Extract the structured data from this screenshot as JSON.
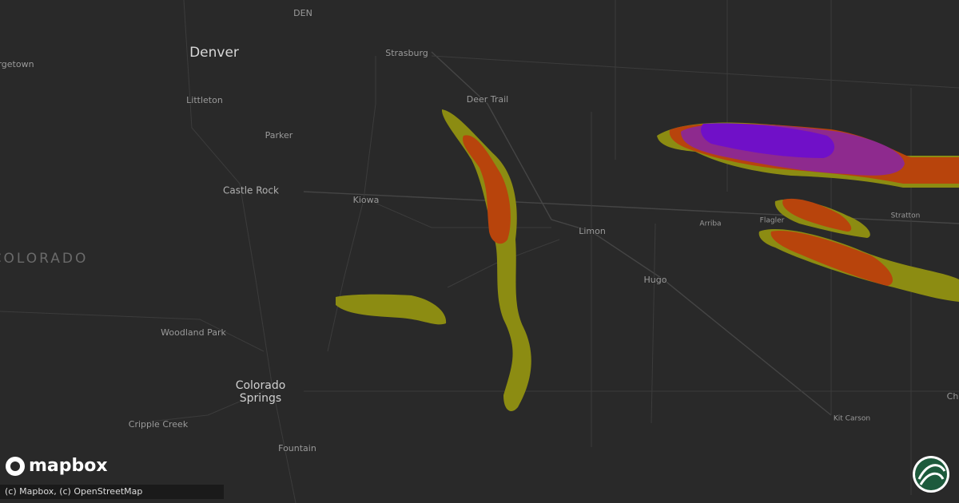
{
  "map": {
    "region_label": "COLORADO",
    "capital": "Denver",
    "airport": "DEN",
    "places": [
      "rgetown",
      "Littleton",
      "Parker",
      "Castle Rock",
      "Kiowa",
      "Strasburg",
      "Deer Trail",
      "Limon",
      "Hugo",
      "Arriba",
      "Flagler",
      "Stratton",
      "Woodland Park",
      "Cripple Creek",
      "Fountain",
      "Kit Carson",
      "Ch"
    ],
    "major_city": [
      "Colorado",
      "Springs"
    ]
  },
  "logo": "mapbox",
  "attribution": "(c) Mapbox, (c) OpenStreetMap"
}
